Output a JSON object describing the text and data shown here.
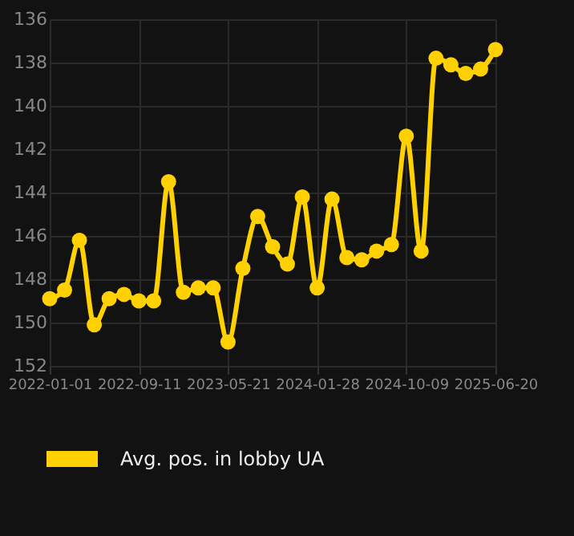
{
  "chart_data": {
    "type": "line",
    "categories": [
      "2022-01-01",
      null,
      null,
      null,
      null,
      null,
      "2022-09-11",
      null,
      null,
      null,
      null,
      null,
      "2023-05-21",
      null,
      null,
      null,
      null,
      null,
      "2024-01-28",
      null,
      null,
      null,
      null,
      null,
      "2024-10-09",
      null,
      null,
      null,
      null,
      null,
      "2025-06-20"
    ],
    "series": [
      {
        "name": "Avg. pos. in lobby UA",
        "color": "#ffd100",
        "values": [
          148.9,
          148.5,
          146.2,
          150.1,
          148.9,
          148.7,
          149.0,
          149.0,
          143.5,
          148.6,
          148.4,
          148.4,
          150.9,
          147.5,
          145.1,
          146.5,
          147.3,
          144.2,
          148.4,
          144.3,
          147.0,
          147.1,
          146.7,
          146.4,
          141.4,
          146.7,
          137.8,
          138.1,
          138.5,
          138.3,
          137.4
        ]
      }
    ],
    "ylim": [
      152,
      136
    ],
    "yticks": [
      136,
      138,
      140,
      142,
      144,
      146,
      148,
      150,
      152
    ],
    "grid": true,
    "legend": "bottom",
    "marker": "circle"
  }
}
